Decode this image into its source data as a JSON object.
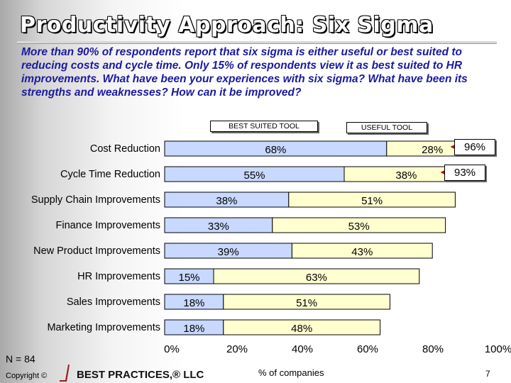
{
  "title": "Productivity Approach: Six Sigma",
  "subtitle": "More than 90% of respondents report that six sigma is either useful or best suited to reducing costs and cycle time. Only 15% of respondents view it as best suited to HR improvements. What have been your experiences with six sigma? What have been its strengths and weaknesses? How can it be improved?",
  "legend": {
    "best": "BEST SUITED TOOL",
    "useful": "USEFUL TOOL"
  },
  "footer": {
    "n_label": "N = 84",
    "copyright": "Copyright ©",
    "brand": "BEST PRACTICES,® LLC",
    "page": "7"
  },
  "chart_data": {
    "type": "bar",
    "orientation": "horizontal",
    "stacked": true,
    "xlabel": "% of companies",
    "xlim": [
      0,
      100
    ],
    "xticks": [
      "0%",
      "20%",
      "40%",
      "60%",
      "80%",
      "100%"
    ],
    "categories": [
      "Cost Reduction",
      "Cycle Time Reduction",
      "Supply Chain Improvements",
      "Finance Improvements",
      "New Product Improvements",
      "HR Improvements",
      "Sales Improvements",
      "Marketing Improvements"
    ],
    "series": [
      {
        "name": "BEST SUITED TOOL",
        "values": [
          68,
          55,
          38,
          33,
          39,
          15,
          18,
          18
        ],
        "color": "#c8d8ff"
      },
      {
        "name": "USEFUL TOOL",
        "values": [
          28,
          38,
          51,
          53,
          43,
          63,
          51,
          48
        ],
        "color": "#ffffd0"
      }
    ],
    "bar_labels": [
      [
        "68%",
        "28%"
      ],
      [
        "55%",
        "38%"
      ],
      [
        "38%",
        "51%"
      ],
      [
        "33%",
        "53%"
      ],
      [
        "39%",
        "43%"
      ],
      [
        "15%",
        "63%"
      ],
      [
        "18%",
        "51%"
      ],
      [
        "18%",
        "48%"
      ]
    ],
    "callouts": [
      "96%",
      "93%"
    ]
  }
}
